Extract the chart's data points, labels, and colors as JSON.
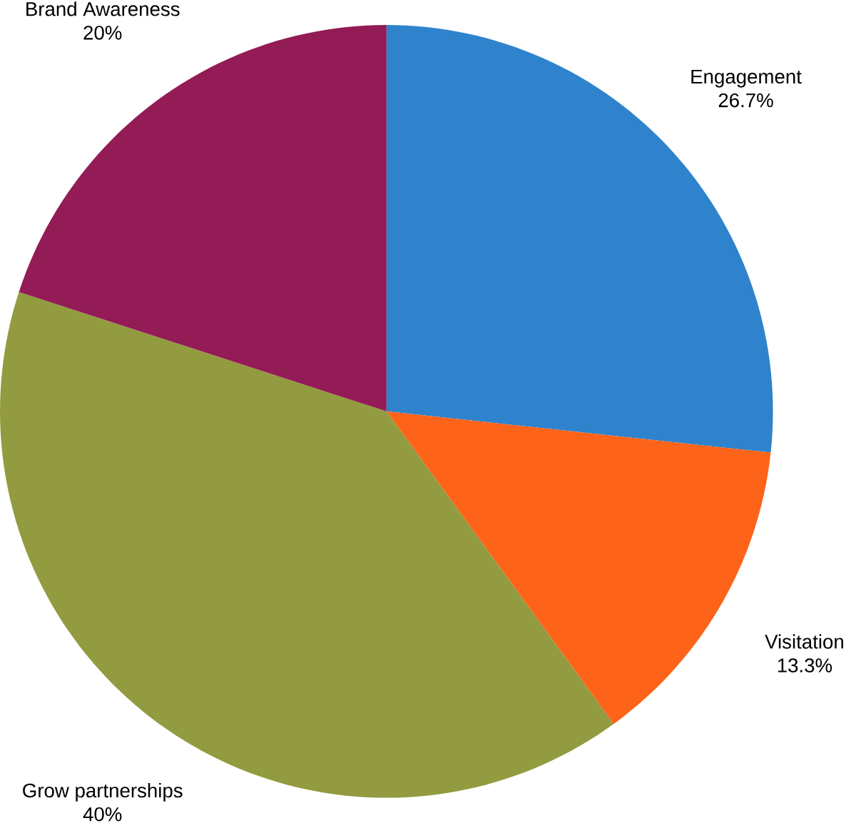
{
  "chart_data": {
    "type": "pie",
    "categories": [
      "Engagement",
      "Visitation",
      "Grow partnerships",
      "Brand Awareness"
    ],
    "values": [
      26.7,
      13.3,
      40,
      20
    ],
    "value_labels": [
      "26.7%",
      "13.3%",
      "40%",
      "20%"
    ],
    "colors": [
      "#2e83cc",
      "#fd6419",
      "#929b3f",
      "#931b56"
    ]
  }
}
